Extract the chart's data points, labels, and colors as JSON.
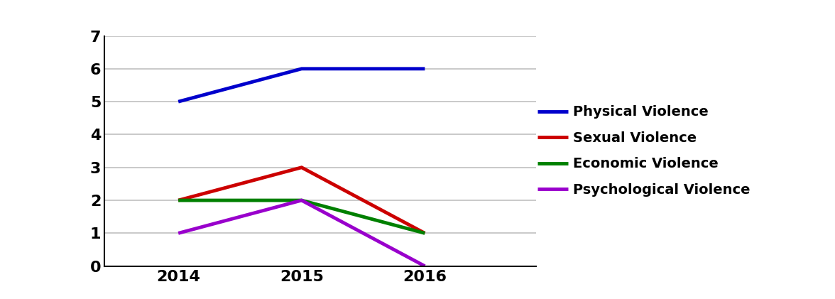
{
  "years": [
    2014,
    2015,
    2016
  ],
  "series": [
    {
      "label": "Physical Violence",
      "values": [
        5,
        6,
        6
      ],
      "color": "#0000CC",
      "linewidth": 3.5
    },
    {
      "label": "Sexual Violence",
      "values": [
        2,
        3,
        1
      ],
      "color": "#CC0000",
      "linewidth": 3.5
    },
    {
      "label": "Economic Violence",
      "values": [
        2,
        2,
        1
      ],
      "color": "#008000",
      "linewidth": 3.5
    },
    {
      "label": "Psychological Violence",
      "values": [
        1,
        2,
        0
      ],
      "color": "#9900CC",
      "linewidth": 3.5
    }
  ],
  "ylim": [
    0,
    7
  ],
  "yticks": [
    0,
    1,
    2,
    3,
    4,
    5,
    6,
    7
  ],
  "xtick_labels": [
    "2014",
    "2015",
    "2016"
  ],
  "grid_color": "#C0C0C0",
  "background_color": "#FFFFFF",
  "legend_fontsize": 14,
  "tick_fontsize": 16,
  "tick_fontweight": "bold",
  "xlim_left": 2013.4,
  "xlim_right": 2016.9
}
